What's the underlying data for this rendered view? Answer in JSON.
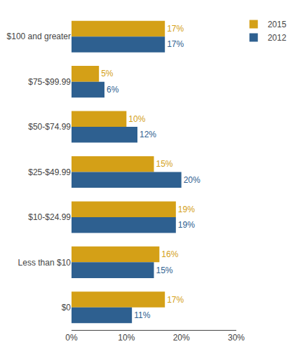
{
  "chart_data": {
    "type": "bar",
    "orientation": "horizontal",
    "categories": [
      "$100 and greater",
      "$75-$99.99",
      "$50-$74.99",
      "$25-$49.99",
      "$10-$24.99",
      "Less than $10",
      "$0"
    ],
    "series": [
      {
        "name": "2015",
        "color": "#D4A017",
        "values": [
          17,
          5,
          10,
          15,
          19,
          16,
          17
        ],
        "value_labels": [
          "17%",
          "5%",
          "10%",
          "15%",
          "19%",
          "16%",
          "17%"
        ]
      },
      {
        "name": "2012",
        "color": "#2E6090",
        "values": [
          17,
          6,
          12,
          20,
          19,
          15,
          11
        ],
        "value_labels": [
          "17%",
          "6%",
          "12%",
          "20%",
          "19%",
          "15%",
          "11%"
        ]
      }
    ],
    "xlim": [
      0,
      30
    ],
    "xticks": [
      {
        "value": 0,
        "label": "0%"
      },
      {
        "value": 10,
        "label": "10%"
      },
      {
        "value": 20,
        "label": "20%"
      },
      {
        "value": 30,
        "label": "30%"
      }
    ],
    "data_labels": true,
    "grid": false,
    "legend": "upper right"
  }
}
